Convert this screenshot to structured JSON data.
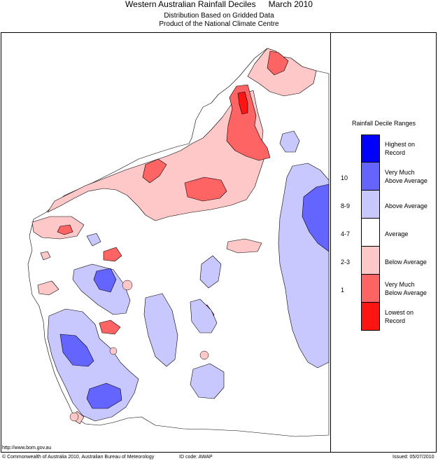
{
  "header": {
    "title": "Western Australian Rainfall Deciles",
    "period": "March 2010",
    "subtitle1": "Distribution Based on Gridded Data",
    "subtitle2": "Product of the National Climate Centre"
  },
  "legend": {
    "title": "Rainfall Decile Ranges",
    "items": [
      {
        "label": "Highest on Record",
        "line1": "Highest on",
        "line2": "Record",
        "decile": "",
        "color": "#0000ff"
      },
      {
        "label": "Very Much Above Average",
        "line1": "Very Much",
        "line2": "Above Average",
        "decile": "10",
        "color": "#6464ff"
      },
      {
        "label": "Above Average",
        "line1": "Above Average",
        "line2": "",
        "decile": "8-9",
        "color": "#c8c8ff"
      },
      {
        "label": "Average",
        "line1": "Average",
        "line2": "",
        "decile": "4-7",
        "color": "#ffffff"
      },
      {
        "label": "Below Average",
        "line1": "Below Average",
        "line2": "",
        "decile": "2-3",
        "color": "#ffc8c8"
      },
      {
        "label": "Very Much Below Average",
        "line1": "Very Much",
        "line2": "Below Average",
        "decile": "1",
        "color": "#ff6464"
      },
      {
        "label": "Lowest on Record",
        "line1": "Lowest on",
        "line2": "Record",
        "decile": "",
        "color": "#ff1414"
      }
    ]
  },
  "footer": {
    "url": "http://www.bom.gov.au",
    "copyright": "© Commonwealth of Australia 2010, Australian Bureau of Meteorology",
    "id_code": "ID code: AWAP",
    "issued": "Issued: 05/07/2010"
  }
}
